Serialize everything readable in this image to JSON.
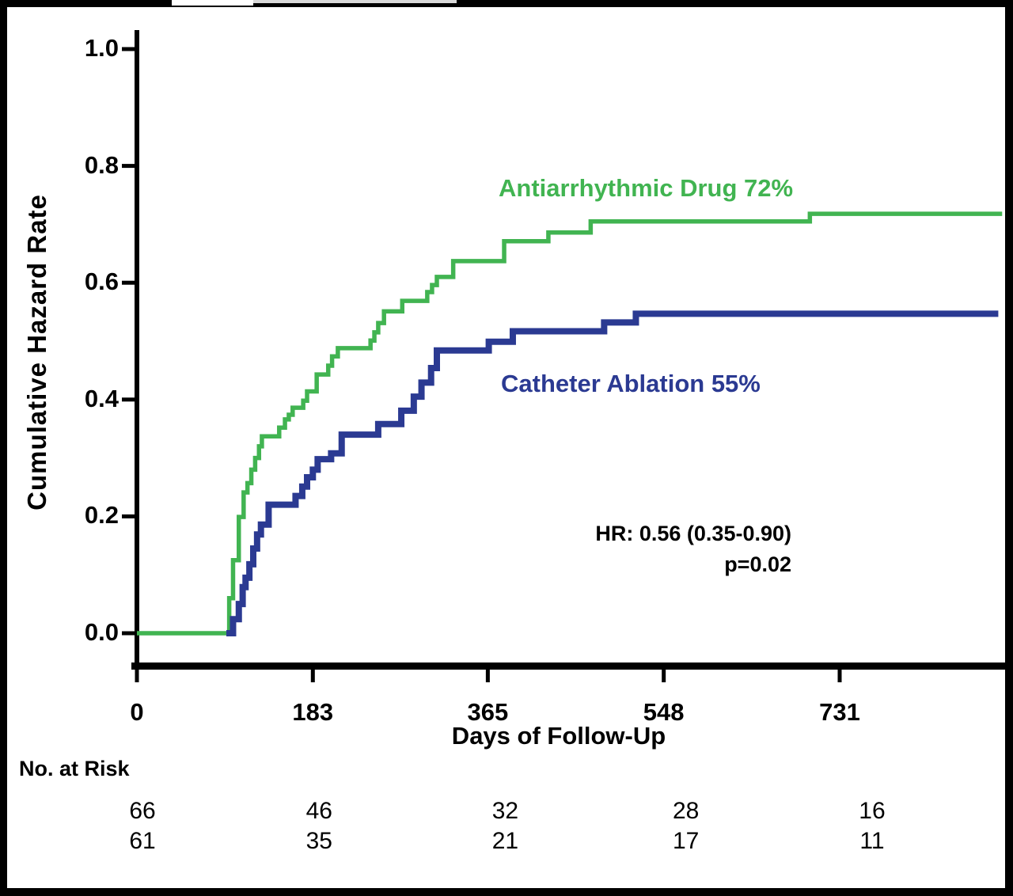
{
  "figure": {
    "y_axis": {
      "title": "Cumulative Hazard Rate",
      "tick_labels": [
        "1.0",
        "0.8",
        "0.6",
        "0.4",
        "0.2",
        "0.0"
      ],
      "tick_values": [
        1.0,
        0.8,
        0.6,
        0.4,
        0.2,
        0.0
      ]
    },
    "x_axis": {
      "title": "Days of Follow-Up",
      "tick_labels": [
        "0",
        "183",
        "365",
        "548",
        "731"
      ],
      "tick_values": [
        0,
        183,
        365,
        548,
        731
      ]
    },
    "series_labels": {
      "antiarrhythmic": "Antiarrhythmic Drug 72%",
      "catheter": "Catheter Ablation 55%"
    },
    "annotations": {
      "hr": "HR: 0.56 (0.35-0.90)",
      "p": "p=0.02"
    },
    "risk_table": {
      "header": "No. at Risk",
      "rows": [
        [
          "66",
          "46",
          "32",
          "28",
          "16"
        ],
        [
          "61",
          "35",
          "21",
          "17",
          "11"
        ]
      ]
    },
    "colors": {
      "green": "#41B451",
      "blue": "#2B3A92",
      "axis": "#000000"
    }
  },
  "chart_data": {
    "type": "line",
    "subtype": "step-cumulative-hazard",
    "title": "",
    "xlabel": "Days of Follow-Up",
    "ylabel": "Cumulative Hazard Rate",
    "xlim": [
      0,
      900
    ],
    "ylim": [
      0.0,
      1.0
    ],
    "xticks": [
      0,
      183,
      365,
      548,
      731
    ],
    "yticks": [
      0.0,
      0.2,
      0.4,
      0.6,
      0.8,
      1.0
    ],
    "grid": false,
    "legend_position": "inline-labels",
    "annotations": [
      "HR: 0.56 (0.35-0.90)",
      "p=0.02"
    ],
    "series": [
      {
        "name": "Antiarrhythmic Drug",
        "label": "Antiarrhythmic Drug 72%",
        "color": "#41B451",
        "final_value": 0.72,
        "line_width": 5.5,
        "steps": [
          [
            0,
            0.0
          ],
          [
            96,
            0.06
          ],
          [
            100,
            0.125
          ],
          [
            106,
            0.199
          ],
          [
            111,
            0.241
          ],
          [
            115,
            0.257
          ],
          [
            119,
            0.28
          ],
          [
            123,
            0.3
          ],
          [
            127,
            0.32
          ],
          [
            130,
            0.337
          ],
          [
            148,
            0.352
          ],
          [
            154,
            0.366
          ],
          [
            158,
            0.374
          ],
          [
            162,
            0.386
          ],
          [
            173,
            0.398
          ],
          [
            177,
            0.414
          ],
          [
            187,
            0.443
          ],
          [
            199,
            0.458
          ],
          [
            203,
            0.474
          ],
          [
            209,
            0.488
          ],
          [
            243,
            0.501
          ],
          [
            247,
            0.515
          ],
          [
            251,
            0.531
          ],
          [
            257,
            0.551
          ],
          [
            276,
            0.569
          ],
          [
            302,
            0.584
          ],
          [
            307,
            0.596
          ],
          [
            312,
            0.61
          ],
          [
            329,
            0.637
          ],
          [
            382,
            0.671
          ],
          [
            428,
            0.686
          ],
          [
            472,
            0.705
          ],
          [
            700,
            0.718
          ],
          [
            900,
            0.718
          ]
        ]
      },
      {
        "name": "Catheter Ablation",
        "label": "Catheter Ablation 55%",
        "color": "#2B3A92",
        "final_value": 0.55,
        "line_width": 8,
        "draw_from_day": 93,
        "steps": [
          [
            0,
            0.0
          ],
          [
            100,
            0.024
          ],
          [
            106,
            0.05
          ],
          [
            110,
            0.079
          ],
          [
            113,
            0.095
          ],
          [
            117,
            0.118
          ],
          [
            121,
            0.145
          ],
          [
            125,
            0.169
          ],
          [
            129,
            0.186
          ],
          [
            137,
            0.22
          ],
          [
            165,
            0.235
          ],
          [
            172,
            0.251
          ],
          [
            177,
            0.267
          ],
          [
            183,
            0.28
          ],
          [
            188,
            0.298
          ],
          [
            202,
            0.308
          ],
          [
            213,
            0.34
          ],
          [
            251,
            0.358
          ],
          [
            275,
            0.381
          ],
          [
            288,
            0.405
          ],
          [
            296,
            0.429
          ],
          [
            306,
            0.454
          ],
          [
            312,
            0.484
          ],
          [
            366,
            0.499
          ],
          [
            391,
            0.517
          ],
          [
            486,
            0.532
          ],
          [
            519,
            0.547
          ],
          [
            896,
            0.547
          ]
        ]
      }
    ],
    "number_at_risk": {
      "times": [
        0,
        183,
        365,
        548,
        731
      ],
      "rows": [
        {
          "values": [
            66,
            46,
            32,
            28,
            16
          ]
        },
        {
          "values": [
            61,
            35,
            21,
            17,
            11
          ]
        }
      ]
    }
  }
}
